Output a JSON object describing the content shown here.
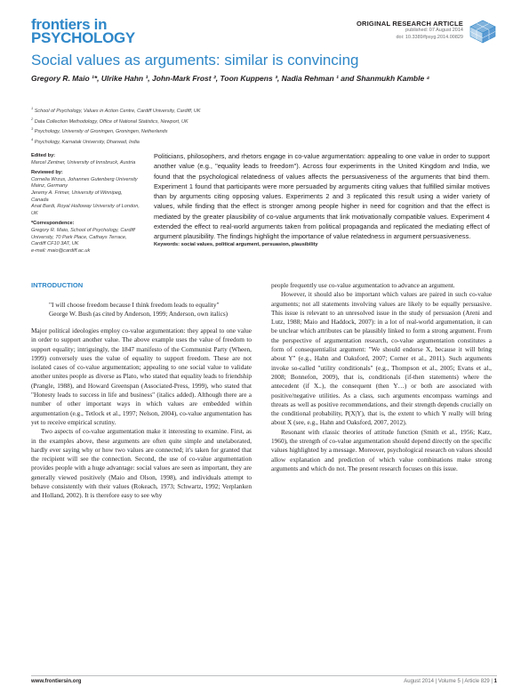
{
  "header": {
    "logo_line1": "frontiers in",
    "logo_line2": "PSYCHOLOGY",
    "article_type": "ORIGINAL RESEARCH ARTICLE",
    "published": "published: 07 August 2014",
    "doi": "doi: 10.3389/fpsyg.2014.00829",
    "accent_color": "#2e87c8"
  },
  "title": "Social values as arguments: similar is convincing",
  "authors": "Gregory R. Maio ¹*, Ulrike Hahn ¹, John-Mark Frost ², Toon Kuppens ³, Nadia Rehman ¹ and Shanmukh Kamble ⁴",
  "affiliations": [
    {
      "num": "1",
      "text": "School of Psychology, Values in Action Centre, Cardiff University, Cardiff, UK"
    },
    {
      "num": "2",
      "text": "Data Collection Methodology, Office of National Statistics, Newport, UK"
    },
    {
      "num": "3",
      "text": "Psychology, University of Groningen, Groningen, Netherlands"
    },
    {
      "num": "4",
      "text": "Psychology, Karnatak University, Dharwad, India"
    }
  ],
  "sidebar": {
    "edited_label": "Edited by:",
    "edited_by": "Marcel Zentner, University of Innsbruck, Austria",
    "reviewed_label": "Reviewed by:",
    "reviewers": [
      "Cornelia Wrzus, Johannes Gutenberg University Mainz, Germany",
      "Jeremy A. Frimer, University of Winnipeg, Canada",
      "Anat Bardi, Royal Holloway University of London, UK"
    ],
    "correspondence_label": "*Correspondence:",
    "correspondence": "Gregory R. Maio, School of Psychology, Cardiff University, 70 Park Place, Cathays Terrace, Cardiff CF10 3AT, UK",
    "email": "e-mail: maio@cardiff.ac.uk"
  },
  "abstract": "Politicians, philosophers, and rhetors engage in co-value argumentation: appealing to one value in order to support another value (e.g., \"equality leads to freedom\"). Across four experiments in the United Kingdom and India, we found that the psychological relatedness of values affects the persuasiveness of the arguments that bind them. Experiment 1 found that participants were more persuaded by arguments citing values that fulfilled similar motives than by arguments citing opposing values. Experiments 2 and 3 replicated this result using a wider variety of values, while finding that the effect is stronger among people higher in need for cognition and that the effect is mediated by the greater plausibility of co-value arguments that link motivationally compatible values. Experiment 4 extended the effect to real-world arguments taken from political propaganda and replicated the mediating effect of argument plausibility. The findings highlight the importance of value relatedness in argument persuasiveness.",
  "keywords": "Keywords: social values, political argument, persuasion, plausibility",
  "body": {
    "intro_heading": "INTRODUCTION",
    "quote": "\"I will choose freedom because I think freedom leads to equality\" George W. Bush (as cited by Anderson, 1999; Anderson, own italics)",
    "col1_p1": "Major political ideologies employ co-value argumentation: they appeal to one value in order to support another value. The above example uses the value of freedom to support equality; intriguingly, the 1847 manifesto of the Communist Party (Wheen, 1999) conversely uses the value of equality to support freedom. These are not isolated cases of co-value argumentation; appealing to one social value to validate another unites people as diverse as Plato, who stated that equality leads to friendship (Prangle, 1988), and Howard Greenspan (Associated-Press, 1999), who stated that \"Honesty leads to success in life and business\" (italics added). Although there are a number of other important ways in which values are embedded within argumentation (e.g., Tetlock et al., 1997; Nelson, 2004), co-value argumentation has yet to receive empirical scrutiny.",
    "col1_p2": "Two aspects of co-value argumentation make it interesting to examine. First, as in the examples above, these arguments are often quite simple and unelaborated, hardly ever saying why or how two values are connected; it's taken for granted that the recipient will see the connection. Second, the use of co-value argumentation provides people with a huge advantage: social values are seen as important, they are generally viewed positively (Maio and Olson, 1998), and individuals attempt to behave consistently with their values (Rokeach, 1973; Schwartz, 1992; Verplanken and Holland, 2002). It is therefore easy to see why",
    "col2_p1": "people frequently use co-value argumentation to advance an argument.",
    "col2_p2": "However, it should also be important which values are paired in such co-value arguments; not all statements involving values are likely to be equally persuasive. This issue is relevant to an unresolved issue in the study of persuasion (Areni and Lutz, 1988; Maio and Haddock, 2007): in a lot of real-world argumentation, it can be unclear which attributes can be plausibly linked to form a strong argument. From the perspective of argumentation research, co-value argumentation constitutes a form of consequentialist argument: \"We should endorse X, because it will bring about Y\" (e.g., Hahn and Oaksford, 2007; Corner et al., 2011). Such arguments invoke so-called \"utility conditionals\" (e.g., Thompson et al., 2005; Evans et al., 2008; Bonnefon, 2009), that is, conditionals (if-then statements) where the antecedent (if X..), the consequent (then Y…) or both are associated with positive/negative utilities. As a class, such arguments encompass warnings and threats as well as positive recommendations, and their strength depends crucially on the conditional probability, P(X|Y), that is, the extent to which Y really will bring about X (see, e.g., Hahn and Oaksford, 2007, 2012).",
    "col2_p3": "Resonant with classic theories of attitude function (Smith et al., 1956; Katz, 1960), the strength of co-value argumentation should depend directly on the specific values highlighted by a message. Moreover, psychological research on values should allow explanation and prediction of which value combinations make strong arguments and which do not. The present research focuses on this issue."
  },
  "footer": {
    "site": "www.frontiersin.org",
    "issue": "August 2014 | Volume 5 | Article 829 |",
    "page": "1"
  }
}
